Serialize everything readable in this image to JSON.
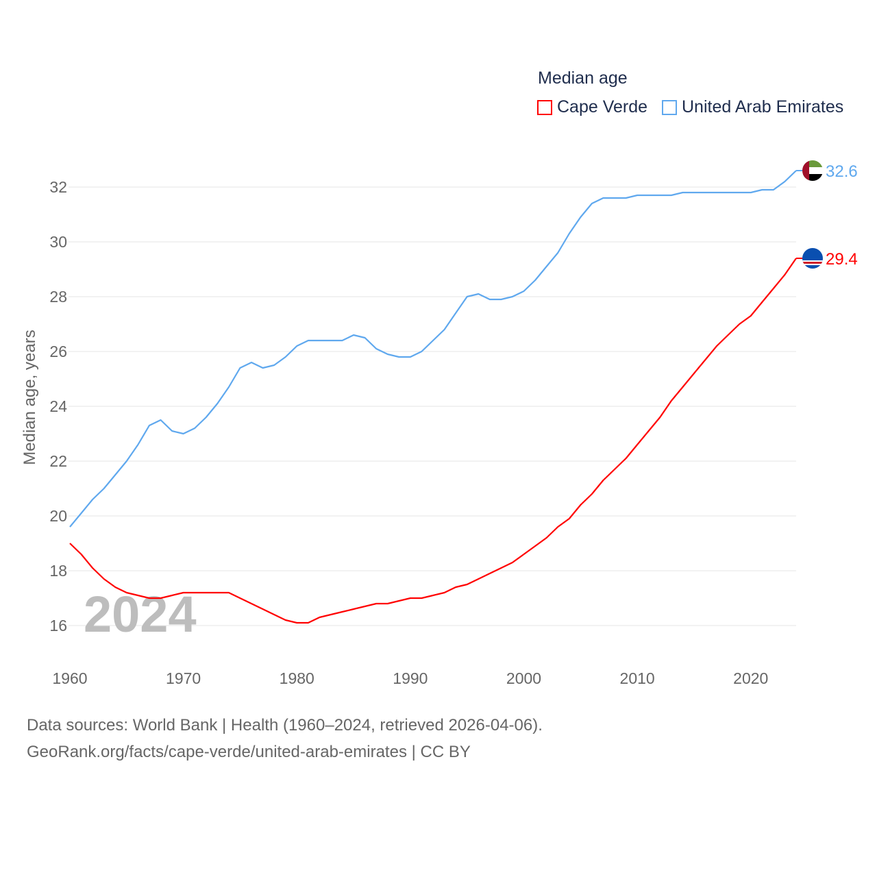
{
  "chart_data": {
    "type": "line",
    "title": "Median age",
    "xlabel": "",
    "ylabel": "Median age, years",
    "xlim": [
      1960,
      2024
    ],
    "ylim": [
      15,
      33
    ],
    "yticks": [
      16,
      18,
      20,
      22,
      24,
      26,
      28,
      30,
      32
    ],
    "xticks": [
      1960,
      1970,
      1980,
      1990,
      2000,
      2010,
      2020
    ],
    "grid": true,
    "legend_position": "top-right",
    "year_watermark": "2024",
    "x": [
      1960,
      1961,
      1962,
      1963,
      1964,
      1965,
      1966,
      1967,
      1968,
      1969,
      1970,
      1971,
      1972,
      1973,
      1974,
      1975,
      1976,
      1977,
      1978,
      1979,
      1980,
      1981,
      1982,
      1983,
      1984,
      1985,
      1986,
      1987,
      1988,
      1989,
      1990,
      1991,
      1992,
      1993,
      1994,
      1995,
      1996,
      1997,
      1998,
      1999,
      2000,
      2001,
      2002,
      2003,
      2004,
      2005,
      2006,
      2007,
      2008,
      2009,
      2010,
      2011,
      2012,
      2013,
      2014,
      2015,
      2016,
      2017,
      2018,
      2019,
      2020,
      2021,
      2022,
      2023,
      2024
    ],
    "series": [
      {
        "name": "Cape Verde",
        "color": "#ff0000",
        "end_label": "29.4",
        "flag": "cape-verde",
        "values": [
          19.0,
          18.6,
          18.1,
          17.7,
          17.4,
          17.2,
          17.1,
          17.0,
          17.0,
          17.1,
          17.2,
          17.2,
          17.2,
          17.2,
          17.2,
          17.0,
          16.8,
          16.6,
          16.4,
          16.2,
          16.1,
          16.1,
          16.3,
          16.4,
          16.5,
          16.6,
          16.7,
          16.8,
          16.8,
          16.9,
          17.0,
          17.0,
          17.1,
          17.2,
          17.4,
          17.5,
          17.7,
          17.9,
          18.1,
          18.3,
          18.6,
          18.9,
          19.2,
          19.6,
          19.9,
          20.4,
          20.8,
          21.3,
          21.7,
          22.1,
          22.6,
          23.1,
          23.6,
          24.2,
          24.7,
          25.2,
          25.7,
          26.2,
          26.6,
          27.0,
          27.3,
          27.8,
          28.3,
          28.8,
          29.4
        ]
      },
      {
        "name": "United Arab Emirates",
        "color": "#5fa8ee",
        "end_label": "32.6",
        "flag": "uae",
        "values": [
          19.6,
          20.1,
          20.6,
          21.0,
          21.5,
          22.0,
          22.6,
          23.3,
          23.5,
          23.1,
          23.0,
          23.2,
          23.6,
          24.1,
          24.7,
          25.4,
          25.6,
          25.4,
          25.5,
          25.8,
          26.2,
          26.4,
          26.4,
          26.4,
          26.4,
          26.6,
          26.5,
          26.1,
          25.9,
          25.8,
          25.8,
          26.0,
          26.4,
          26.8,
          27.4,
          28.0,
          28.1,
          27.9,
          27.9,
          28.0,
          28.2,
          28.6,
          29.1,
          29.6,
          30.3,
          30.9,
          31.4,
          31.6,
          31.6,
          31.6,
          31.7,
          31.7,
          31.7,
          31.7,
          31.8,
          31.8,
          31.8,
          31.8,
          31.8,
          31.8,
          31.8,
          31.9,
          31.9,
          32.2,
          32.6
        ]
      }
    ]
  },
  "footer": {
    "line1": "Data sources: World Bank | Health (1960–2024, retrieved 2026-04-06).",
    "line2": "GeoRank.org/facts/cape-verde/united-arab-emirates | CC BY"
  }
}
